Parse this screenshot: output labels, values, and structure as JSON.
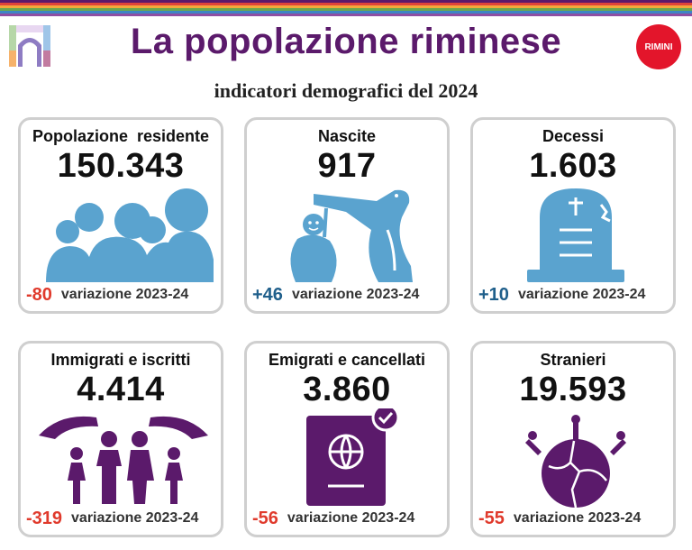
{
  "header": {
    "title": "La popolazione riminese",
    "subtitle": "indicatori demografici del 2024",
    "badge": "RIMINI"
  },
  "colors": {
    "title": "#5b1a6b",
    "blue_icon": "#5aa3cf",
    "purple_icon": "#5b1a6b",
    "negative": "#e03a2c",
    "positive": "#1f5f8b",
    "card_border": "#cfcfcf",
    "stripes": [
      "#5b1a6b",
      "#e0443a",
      "#f3a93b",
      "#6aa84f",
      "#3d85c6",
      "#8e4ea3"
    ]
  },
  "cards": [
    {
      "label": "Popolazione  residente",
      "value": "150.343",
      "delta": "-80",
      "delta_color": "#e03a2c",
      "period": "variazione 2023-24",
      "icon": "people-group-icon"
    },
    {
      "label": "Nascite",
      "value": "917",
      "delta": "+46",
      "delta_color": "#1f5f8b",
      "period": "variazione 2023-24",
      "icon": "stork-baby-icon"
    },
    {
      "label": "Decessi",
      "value": "1.603",
      "delta": "+10",
      "delta_color": "#1f5f8b",
      "period": "variazione 2023-24",
      "icon": "tombstone-icon"
    },
    {
      "label": "Immigrati e iscritti",
      "value": "4.414",
      "delta": "-319",
      "delta_color": "#e03a2c",
      "period": "variazione 2023-24",
      "icon": "family-hands-icon"
    },
    {
      "label": "Emigrati e cancellati",
      "value": "3.860",
      "delta": "-56",
      "delta_color": "#e03a2c",
      "period": "variazione 2023-24",
      "icon": "passport-icon"
    },
    {
      "label": "Stranieri",
      "value": "19.593",
      "delta": "-55",
      "delta_color": "#e03a2c",
      "period": "variazione 2023-24",
      "icon": "globe-people-icon"
    }
  ]
}
